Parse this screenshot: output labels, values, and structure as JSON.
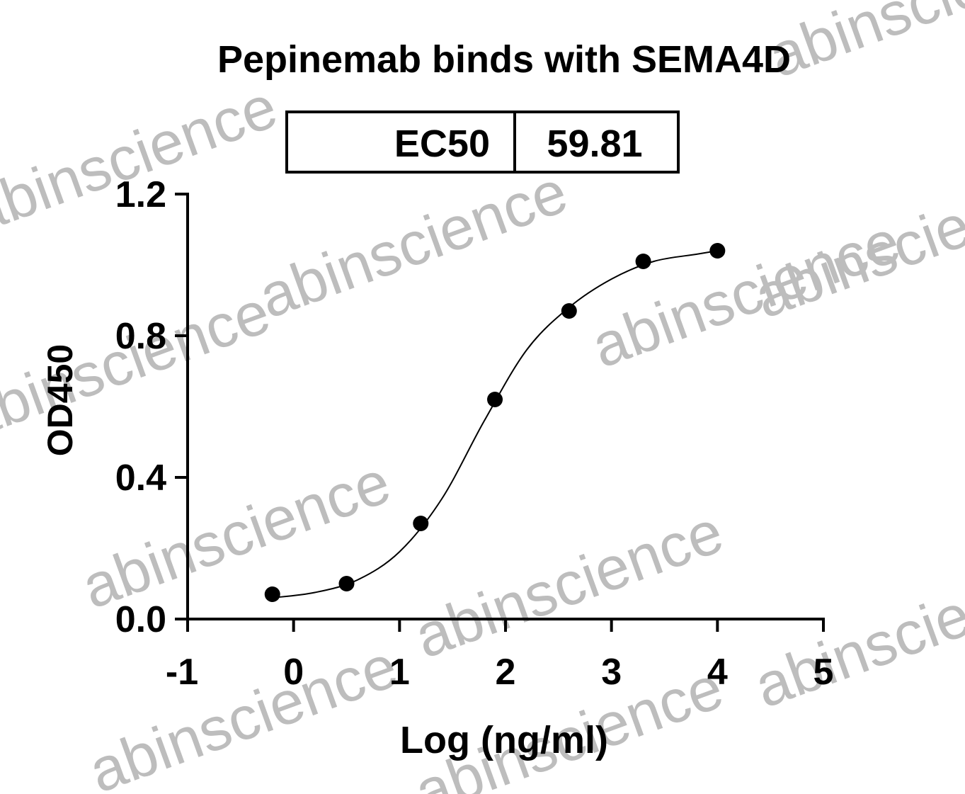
{
  "chart_data": {
    "type": "scatter",
    "title": "Pepinemab binds with SEMA4D",
    "ec50_label": "EC50",
    "ec50_value": 59.81,
    "xlabel": "Log (ng/ml)",
    "ylabel": "OD450",
    "watermark": "abinscience",
    "x": [
      -0.2,
      0.5,
      1.2,
      1.9,
      2.6,
      3.3,
      4.0
    ],
    "values": [
      0.07,
      0.1,
      0.27,
      0.62,
      0.87,
      1.01,
      1.04
    ],
    "color": "#000000",
    "fit": {
      "x": [
        -0.2,
        0.2,
        0.6,
        1.0,
        1.4,
        1.8,
        2.2,
        2.6,
        3.0,
        3.4,
        3.8,
        4.0
      ],
      "values": [
        0.06,
        0.075,
        0.11,
        0.19,
        0.34,
        0.56,
        0.76,
        0.88,
        0.96,
        1.01,
        1.03,
        1.04
      ]
    },
    "xlim": [
      -1,
      5
    ],
    "xticks": [
      -1,
      0,
      1,
      2,
      3,
      4,
      5
    ],
    "ylim": [
      0,
      1.2
    ],
    "yticks": [
      {
        "value": 0,
        "label": "0.0"
      },
      0.4,
      0.8,
      1.2
    ]
  }
}
